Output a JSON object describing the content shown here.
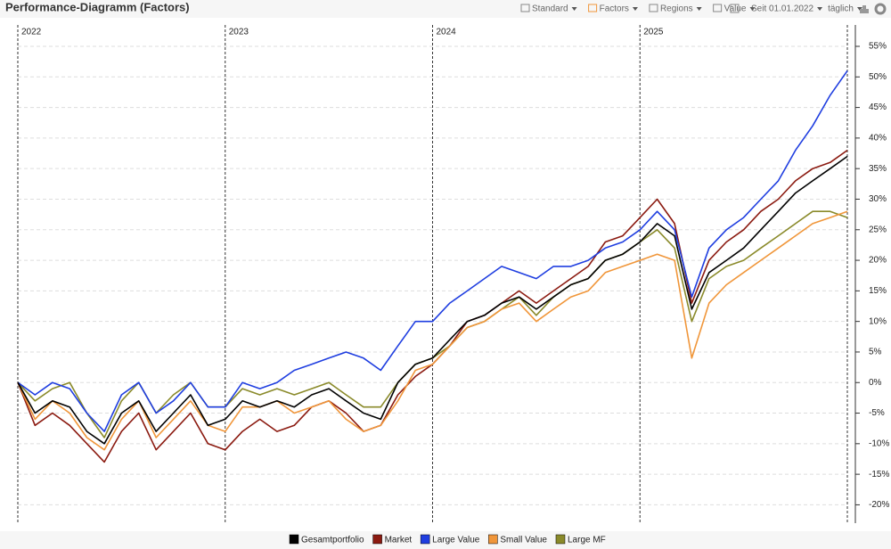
{
  "chart_data": {
    "type": "line",
    "title": "Performance-Diagramm (Factors)",
    "x": [
      2022,
      2022.083,
      2022.167,
      2022.25,
      2022.333,
      2022.417,
      2022.5,
      2022.583,
      2022.667,
      2022.75,
      2022.833,
      2022.917,
      2023,
      2023.083,
      2023.167,
      2023.25,
      2023.333,
      2023.417,
      2023.5,
      2023.583,
      2023.667,
      2023.75,
      2023.833,
      2023.917,
      2024,
      2024.083,
      2024.167,
      2024.25,
      2024.333,
      2024.417,
      2024.5,
      2024.583,
      2024.667,
      2024.75,
      2024.833,
      2024.917,
      2025,
      2025.083,
      2025.167,
      2025.25,
      2025.333,
      2025.417,
      2025.5,
      2025.583,
      2025.667,
      2025.75,
      2025.833,
      2025.917,
      2026
    ],
    "xlim": [
      2022,
      2026
    ],
    "xticks": [
      2022,
      2023,
      2024,
      2025
    ],
    "ylim": [
      -23,
      58.5
    ],
    "yticks": [
      {
        "value": -20,
        "label": "-20%"
      },
      {
        "value": -15,
        "label": "-15%"
      },
      {
        "value": -10,
        "label": "-10%"
      },
      {
        "value": -5,
        "label": "-5%"
      },
      {
        "value": 0,
        "label": "0%"
      },
      {
        "value": 5,
        "label": "5%"
      },
      {
        "value": 10,
        "label": "10%"
      },
      {
        "value": 15,
        "label": "15%"
      },
      {
        "value": 20,
        "label": "20%"
      },
      {
        "value": 25,
        "label": "25%"
      },
      {
        "value": 30,
        "label": "30%"
      },
      {
        "value": 35,
        "label": "35%"
      },
      {
        "value": 40,
        "label": "40%"
      },
      {
        "value": 45,
        "label": "45%"
      },
      {
        "value": 50,
        "label": "50%"
      },
      {
        "value": 55,
        "label": "55%"
      }
    ],
    "grid": true,
    "series": [
      {
        "name": "Gesamtportfolio",
        "color": "#000000",
        "values": [
          0,
          -5,
          -3,
          -4,
          -8,
          -10,
          -5,
          -3,
          -8,
          -5,
          -2,
          -7,
          -6,
          -3,
          -4,
          -3,
          -4,
          -2,
          -1,
          -3,
          -5,
          -6,
          0,
          3,
          4,
          7,
          10,
          11,
          13,
          14,
          12,
          14,
          16,
          17,
          20,
          21,
          23,
          26,
          24,
          12,
          18,
          20,
          22,
          25,
          28,
          31,
          33,
          35,
          37
        ]
      },
      {
        "name": "Market",
        "color": "#8b1a10",
        "values": [
          0,
          -7,
          -5,
          -7,
          -10,
          -13,
          -8,
          -5,
          -11,
          -8,
          -5,
          -10,
          -11,
          -8,
          -6,
          -8,
          -7,
          -4,
          -3,
          -5,
          -8,
          -7,
          -2,
          1,
          3,
          6,
          10,
          11,
          13,
          15,
          13,
          15,
          17,
          19,
          23,
          24,
          27,
          30,
          26,
          13,
          20,
          23,
          25,
          28,
          30,
          33,
          35,
          36,
          38
        ]
      },
      {
        "name": "Large Value",
        "color": "#1f3ee0",
        "values": [
          0,
          -2,
          0,
          -1,
          -5,
          -8,
          -2,
          0,
          -5,
          -3,
          0,
          -4,
          -4,
          0,
          -1,
          0,
          2,
          3,
          4,
          5,
          4,
          2,
          6,
          10,
          10,
          13,
          15,
          17,
          19,
          18,
          17,
          19,
          19,
          20,
          22,
          23,
          25,
          28,
          25,
          14,
          22,
          25,
          27,
          30,
          33,
          38,
          42,
          47,
          51
        ]
      },
      {
        "name": "Small Value",
        "color": "#f0963a",
        "values": [
          0,
          -6,
          -3,
          -5,
          -9,
          -11,
          -6,
          -3,
          -9,
          -6,
          -3,
          -7,
          -8,
          -4,
          -4,
          -3,
          -5,
          -4,
          -3,
          -6,
          -8,
          -7,
          -3,
          2,
          3,
          6,
          9,
          10,
          12,
          13,
          10,
          12,
          14,
          15,
          18,
          19,
          20,
          21,
          20,
          4,
          13,
          16,
          18,
          20,
          22,
          24,
          26,
          27,
          28
        ]
      },
      {
        "name": "Large MF",
        "color": "#8a8a2a",
        "values": [
          0,
          -3,
          -1,
          0,
          -5,
          -9,
          -3,
          0,
          -5,
          -2,
          0,
          -4,
          -4,
          -1,
          -2,
          -1,
          -2,
          -1,
          0,
          -2,
          -4,
          -4,
          0,
          3,
          4,
          6,
          9,
          10,
          12,
          14,
          11,
          14,
          16,
          17,
          20,
          21,
          23,
          25,
          22,
          10,
          17,
          19,
          20,
          22,
          24,
          26,
          28,
          28,
          27
        ]
      }
    ]
  },
  "toolbar": {
    "views": [
      "Standard",
      "Factors",
      "Regions",
      "Value"
    ],
    "period": "Seit 01.01.2022",
    "interval": "täglich"
  }
}
